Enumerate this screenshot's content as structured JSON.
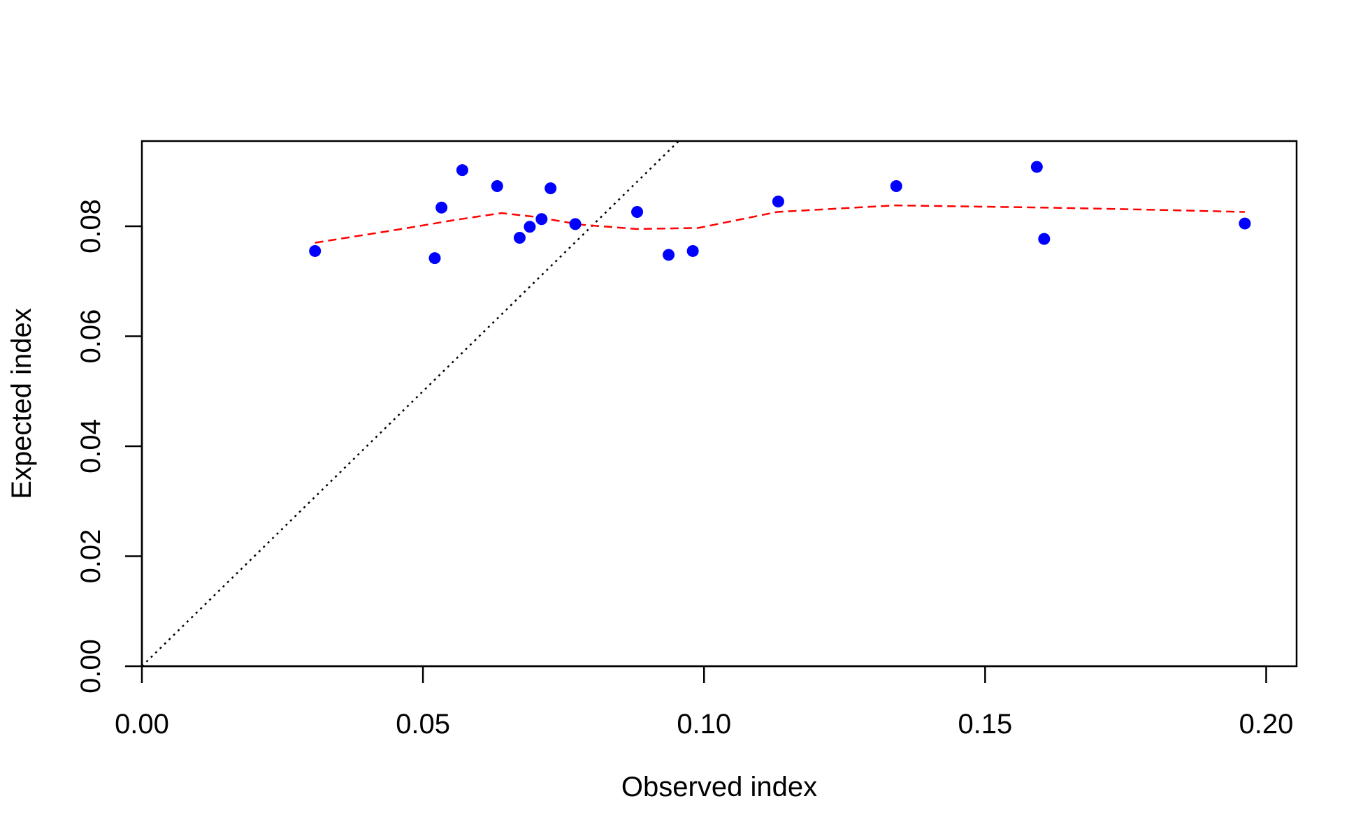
{
  "chart_data": {
    "type": "scatter",
    "title": "",
    "xlabel": "Observed index",
    "ylabel": "Expected index",
    "xlim": [
      0,
      0.206
    ],
    "ylim": [
      0,
      0.0955
    ],
    "x_ticks": [
      0,
      0.05,
      0.1,
      0.15,
      0.2
    ],
    "x_tick_labels": [
      "0.00",
      "0.05",
      "0.10",
      "0.15",
      "0.20"
    ],
    "y_ticks": [
      0,
      0.02,
      0.04,
      0.06,
      0.08
    ],
    "y_tick_labels": [
      "0.00",
      "0.02",
      "0.04",
      "0.06",
      "0.08"
    ],
    "grid": false,
    "points": {
      "color": "#0000ff",
      "x": [
        0.0308,
        0.0521,
        0.0533,
        0.057,
        0.0632,
        0.0672,
        0.069,
        0.0711,
        0.0727,
        0.0771,
        0.0881,
        0.0937,
        0.098,
        0.1132,
        0.1342,
        0.1592,
        0.1605,
        0.1962
      ],
      "y": [
        0.0755,
        0.0742,
        0.0834,
        0.0902,
        0.0873,
        0.0779,
        0.0799,
        0.0813,
        0.0869,
        0.0804,
        0.0826,
        0.0748,
        0.0755,
        0.0845,
        0.0873,
        0.0908,
        0.0777,
        0.0805
      ]
    },
    "smooth_line": {
      "color": "#ff0000",
      "style": "dashed",
      "x": [
        0.0308,
        0.045,
        0.056,
        0.064,
        0.07,
        0.078,
        0.088,
        0.099,
        0.113,
        0.134,
        0.16,
        0.18,
        0.1962
      ],
      "y": [
        0.077,
        0.0793,
        0.0812,
        0.0824,
        0.0817,
        0.0803,
        0.0795,
        0.0797,
        0.0826,
        0.0838,
        0.0834,
        0.083,
        0.0826
      ]
    },
    "reference_line": {
      "color": "#000000",
      "style": "dotted",
      "slope": 1,
      "intercept": 0
    }
  }
}
